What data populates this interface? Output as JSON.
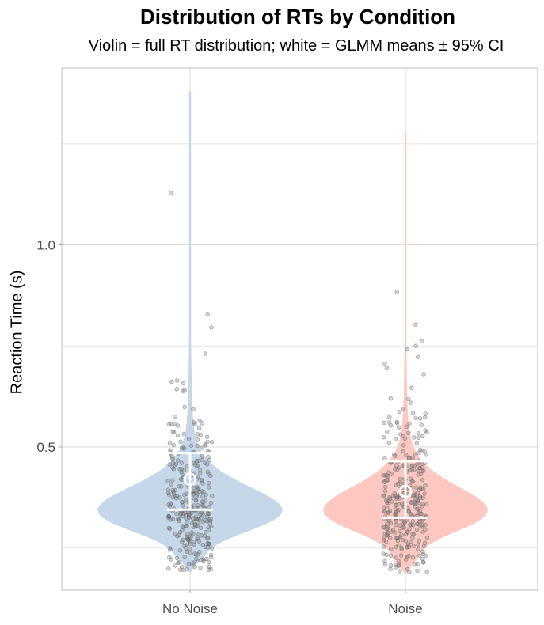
{
  "chart_data": {
    "type": "violin",
    "title": "Distribution of RTs by Condition",
    "subtitle": "Violin = full RT distribution; white = GLMM means ± 95% CI",
    "xlabel": "",
    "ylabel": "Reaction Time (s)",
    "categories": [
      "No Noise",
      "Noise"
    ],
    "ylim": [
      0.15,
      1.42
    ],
    "yticks": [
      0.5,
      1.0
    ],
    "ytick_labels": [
      "0.5",
      "1.0"
    ],
    "grid": true,
    "legend": "none",
    "series": [
      {
        "category": "No Noise",
        "color": "#c5d7e9",
        "glmm_mean": 0.42,
        "ci": [
          0.345,
          0.485
        ],
        "min": 0.19,
        "max": 1.38,
        "mode": 0.345
      },
      {
        "category": "Noise",
        "color": "#fcc8c1",
        "glmm_mean": 0.39,
        "ci": [
          0.325,
          0.465
        ],
        "min": 0.185,
        "max": 1.28,
        "mode": 0.345
      }
    ],
    "points_color": "#808080"
  }
}
